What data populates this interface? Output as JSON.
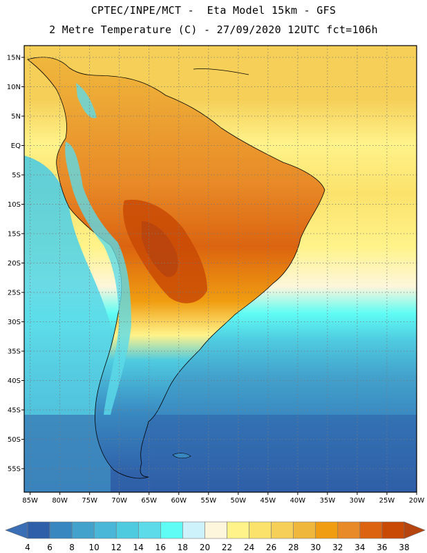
{
  "header": {
    "line1": "CPTEC/INPE/MCT -  Eta Model 15km - GFS",
    "line2": "2 Metre Temperature (C) - 27/09/2020 12UTC fct=106h"
  },
  "map": {
    "region": "South America",
    "projection": "lat-lon",
    "lon_range": [
      -86,
      -20
    ],
    "lat_range": [
      -59,
      17
    ],
    "lat_ticks": [
      {
        "value": 15,
        "label": "15N"
      },
      {
        "value": 10,
        "label": "10N"
      },
      {
        "value": 5,
        "label": "5N"
      },
      {
        "value": 0,
        "label": "EQ"
      },
      {
        "value": -5,
        "label": "5S"
      },
      {
        "value": -10,
        "label": "10S"
      },
      {
        "value": -15,
        "label": "15S"
      },
      {
        "value": -20,
        "label": "20S"
      },
      {
        "value": -25,
        "label": "25S"
      },
      {
        "value": -30,
        "label": "30S"
      },
      {
        "value": -35,
        "label": "35S"
      },
      {
        "value": -40,
        "label": "40S"
      },
      {
        "value": -45,
        "label": "45S"
      },
      {
        "value": -50,
        "label": "50S"
      },
      {
        "value": -55,
        "label": "55S"
      }
    ],
    "lon_ticks": [
      {
        "value": -85,
        "label": "85W"
      },
      {
        "value": -80,
        "label": "80W"
      },
      {
        "value": -75,
        "label": "75W"
      },
      {
        "value": -70,
        "label": "70W"
      },
      {
        "value": -65,
        "label": "65W"
      },
      {
        "value": -60,
        "label": "60W"
      },
      {
        "value": -55,
        "label": "55W"
      },
      {
        "value": -50,
        "label": "50W"
      },
      {
        "value": -45,
        "label": "45W"
      },
      {
        "value": -40,
        "label": "40W"
      },
      {
        "value": -35,
        "label": "35W"
      },
      {
        "value": -30,
        "label": "30W"
      },
      {
        "value": -25,
        "label": "25W"
      },
      {
        "value": -20,
        "label": "20W"
      }
    ]
  },
  "colorbar": {
    "unit": "C",
    "levels": [
      4,
      6,
      8,
      10,
      12,
      14,
      16,
      18,
      20,
      22,
      24,
      26,
      28,
      30,
      32,
      34,
      36,
      38
    ],
    "labels": [
      "4",
      "6",
      "8",
      "10",
      "12",
      "14",
      "16",
      "18",
      "20",
      "22",
      "24",
      "26",
      "28",
      "30",
      "32",
      "34",
      "36",
      "38"
    ],
    "colors": [
      "#3a6fb5",
      "#2f5fa8",
      "#3887c0",
      "#43a2cc",
      "#4ab7d8",
      "#4fcbe0",
      "#5ddbe8",
      "#5ffcf5",
      "#cdf2fb",
      "#fdf6dc",
      "#fff38a",
      "#fbe26b",
      "#f5cf58",
      "#efb73c",
      "#f09d11",
      "#e88a27",
      "#dc6410",
      "#c94a05",
      "#b6440f"
    ]
  }
}
